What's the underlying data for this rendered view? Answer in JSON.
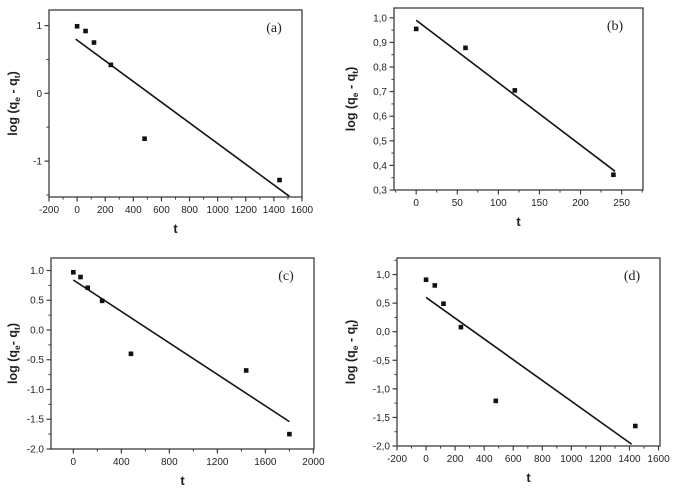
{
  "figure": {
    "background": "#ffffff",
    "axis_color": "#3d3d3d",
    "text_color": "#1f1f1f",
    "marker_color": "#111111",
    "line_color": "#111111",
    "xlabel": "t"
  },
  "chart_data": [
    {
      "type": "scatter",
      "panel_label": "(a)",
      "xlabel": "t",
      "ylabel_parts": [
        {
          "text": "log (q",
          "sub": false
        },
        {
          "text": "e",
          "sub": true
        },
        {
          "text": " - q",
          "sub": false
        },
        {
          "text": "t",
          "sub": true
        },
        {
          "text": ")",
          "sub": false
        }
      ],
      "xlim": [
        -200,
        1600
      ],
      "ylim": [
        -1.53,
        1.23
      ],
      "x_ticks": {
        "values": [
          -200,
          0,
          200,
          400,
          600,
          800,
          1000,
          1200,
          1400,
          1600
        ],
        "labels": [
          "-200",
          "0",
          "200",
          "400",
          "600",
          "800",
          "1000",
          "1200",
          "1400",
          "1600"
        ]
      },
      "y_ticks": {
        "values": [
          1,
          0,
          -1
        ],
        "labels": [
          "1",
          "0",
          "-1"
        ]
      },
      "x_minor_step": 100,
      "y_minor_step": 0.5,
      "points": [
        [
          0,
          0.99
        ],
        [
          60,
          0.92
        ],
        [
          120,
          0.75
        ],
        [
          240,
          0.42
        ],
        [
          480,
          -0.67
        ],
        [
          1440,
          -1.28
        ]
      ],
      "fit_line": {
        "x1": -10,
        "y1": 0.8,
        "x2": 1510,
        "y2": -1.52
      },
      "legend": null,
      "grid": false
    },
    {
      "type": "scatter",
      "panel_label": "(b)",
      "xlabel": "t",
      "ylabel_parts": [
        {
          "text": "log (q",
          "sub": false
        },
        {
          "text": "e",
          "sub": true
        },
        {
          "text": " - q",
          "sub": false
        },
        {
          "text": "t",
          "sub": true
        },
        {
          "text": ")",
          "sub": false
        }
      ],
      "xlim": [
        -27,
        276
      ],
      "ylim": [
        0.3,
        1.04
      ],
      "x_ticks": {
        "values": [
          0,
          50,
          100,
          150,
          200,
          250
        ],
        "labels": [
          "0",
          "50",
          "100",
          "150",
          "200",
          "250"
        ]
      },
      "y_ticks": {
        "values": [
          1.0,
          0.9,
          0.8,
          0.7,
          0.6,
          0.5,
          0.4,
          0.3
        ],
        "labels": [
          "1,0",
          "0,9",
          "0,8",
          "0,7",
          "0,6",
          "0,5",
          "0,4",
          "0,3"
        ]
      },
      "x_minor_step": 25,
      "y_minor_step": 0.05,
      "points": [
        [
          0,
          0.955
        ],
        [
          60,
          0.878
        ],
        [
          120,
          0.705
        ],
        [
          240,
          0.362
        ]
      ],
      "fit_line": {
        "x1": 0,
        "y1": 0.99,
        "x2": 242,
        "y2": 0.376
      },
      "legend": null,
      "grid": false
    },
    {
      "type": "scatter",
      "panel_label": "(c)",
      "xlabel": "t",
      "ylabel_parts": [
        {
          "text": "log (q",
          "sub": false
        },
        {
          "text": "e",
          "sub": true
        },
        {
          "text": "- q",
          "sub": false
        },
        {
          "text": "t",
          "sub": true
        },
        {
          "text": ")",
          "sub": false
        }
      ],
      "xlim": [
        -186,
        2005
      ],
      "ylim": [
        -2.0,
        1.21
      ],
      "x_ticks": {
        "values": [
          0,
          400,
          800,
          1200,
          1600,
          2000
        ],
        "labels": [
          "0",
          "400",
          "800",
          "1200",
          "1600",
          "2000"
        ]
      },
      "y_ticks": {
        "values": [
          1.0,
          0.5,
          0.0,
          -0.5,
          -1.0,
          -1.5,
          -2.0
        ],
        "labels": [
          "1.0",
          "0.5",
          "0.0",
          "-0.5",
          "-1.0",
          "-1.5",
          "-2.0"
        ]
      },
      "x_minor_step": 200,
      "y_minor_step": 0.25,
      "points": [
        [
          0,
          0.97
        ],
        [
          60,
          0.89
        ],
        [
          120,
          0.71
        ],
        [
          240,
          0.49
        ],
        [
          480,
          -0.4
        ],
        [
          1440,
          -0.68
        ],
        [
          1800,
          -1.75
        ]
      ],
      "fit_line": {
        "x1": 0,
        "y1": 0.84,
        "x2": 1800,
        "y2": -1.54
      },
      "legend": null,
      "grid": false
    },
    {
      "type": "scatter",
      "panel_label": "(d)",
      "xlabel": "t",
      "ylabel_parts": [
        {
          "text": "log (q",
          "sub": false
        },
        {
          "text": "e",
          "sub": true
        },
        {
          "text": " - q",
          "sub": false
        },
        {
          "text": "t",
          "sub": true
        },
        {
          "text": ")",
          "sub": false
        }
      ],
      "xlim": [
        -200,
        1610
      ],
      "ylim": [
        -2.0,
        1.29
      ],
      "x_ticks": {
        "values": [
          -200,
          0,
          200,
          400,
          600,
          800,
          1000,
          1200,
          1400,
          1600
        ],
        "labels": [
          "-200",
          "0",
          "200",
          "400",
          "600",
          "800",
          "1000",
          "1200",
          "1400",
          "1600"
        ]
      },
      "y_ticks": {
        "values": [
          1.0,
          0.5,
          0.0,
          -0.5,
          -1.0,
          -1.5,
          -2.0
        ],
        "labels": [
          "1,0",
          "0,5",
          "0,0",
          "-0,5",
          "-1,0",
          "-1,5",
          "-2,0"
        ]
      },
      "x_minor_step": 100,
      "y_minor_step": 0.25,
      "points": [
        [
          0,
          0.91
        ],
        [
          60,
          0.81
        ],
        [
          120,
          0.49
        ],
        [
          240,
          0.08
        ],
        [
          480,
          -1.21
        ],
        [
          1440,
          -1.65
        ]
      ],
      "fit_line": {
        "x1": 0,
        "y1": 0.6,
        "x2": 1415,
        "y2": -1.97
      },
      "legend": null,
      "grid": false
    }
  ]
}
